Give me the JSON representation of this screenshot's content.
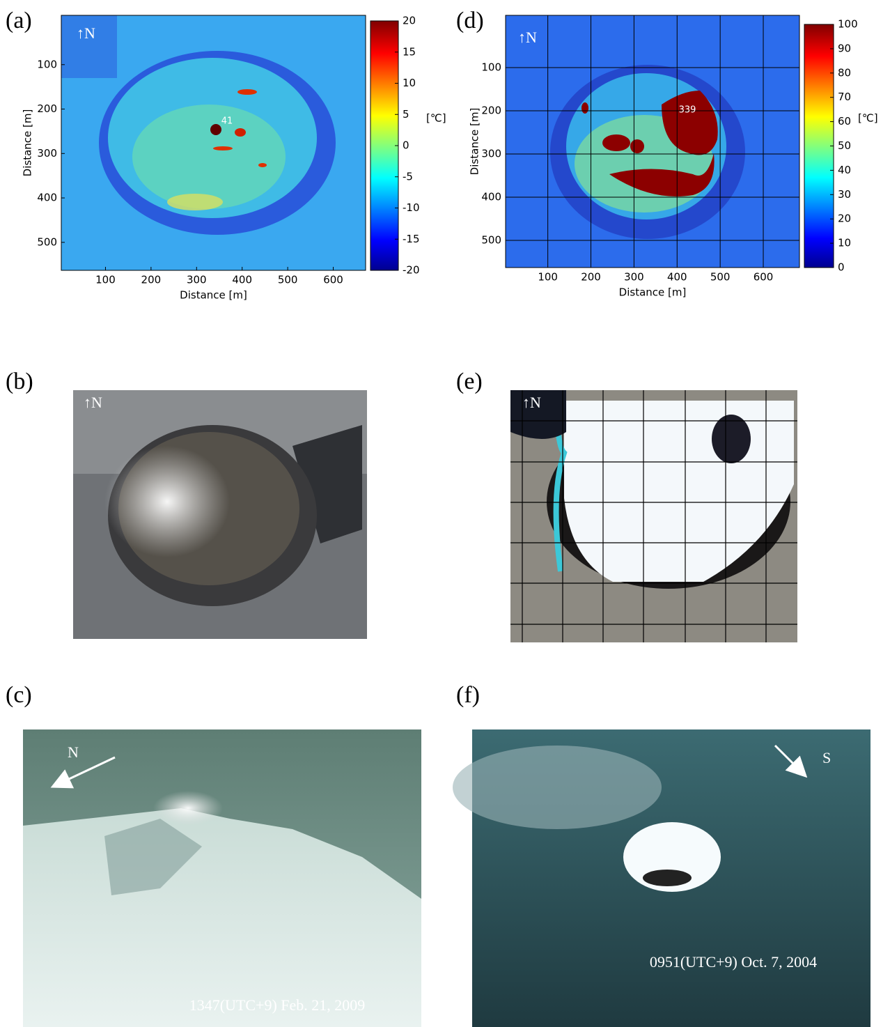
{
  "a": {
    "label": "(a)",
    "north": "↑N",
    "annotation": "41",
    "x_label": "Distance [m]",
    "y_label": "Distance [m]",
    "xlim": [
      3,
      671
    ],
    "ylim": [
      -11,
      563
    ],
    "xticks": [
      100,
      200,
      300,
      400,
      500,
      600
    ],
    "yticks": [
      100,
      200,
      300,
      400,
      500
    ],
    "colorbar": {
      "unit": "[℃]",
      "lim": [
        -20,
        20
      ],
      "ticks": [
        20,
        15,
        10,
        5,
        0,
        -5,
        -10,
        -15,
        -20
      ]
    }
  },
  "d": {
    "label": "(d)",
    "north": "↑N",
    "annotation": "339",
    "x_label": "Distance [m]",
    "y_label": "Distance [m]",
    "xlim": [
      2,
      684
    ],
    "ylim": [
      -21,
      563
    ],
    "xticks": [
      100,
      200,
      300,
      400,
      500,
      600
    ],
    "yticks": [
      100,
      200,
      300,
      400,
      500
    ],
    "grid": true,
    "colorbar": {
      "unit": "[℃]",
      "lim": [
        0,
        100
      ],
      "ticks": [
        100,
        90,
        80,
        70,
        60,
        50,
        40,
        30,
        20,
        10,
        0
      ]
    }
  },
  "b": {
    "label": "(b)",
    "north": "↑N"
  },
  "e": {
    "label": "(e)",
    "north": "↑N"
  },
  "c": {
    "label": "(c)",
    "direction": "N",
    "caption": "1347(UTC+9) Feb. 21, 2009"
  },
  "f": {
    "label": "(f)",
    "direction": "S",
    "caption": "0951(UTC+9) Oct. 7, 2004"
  }
}
